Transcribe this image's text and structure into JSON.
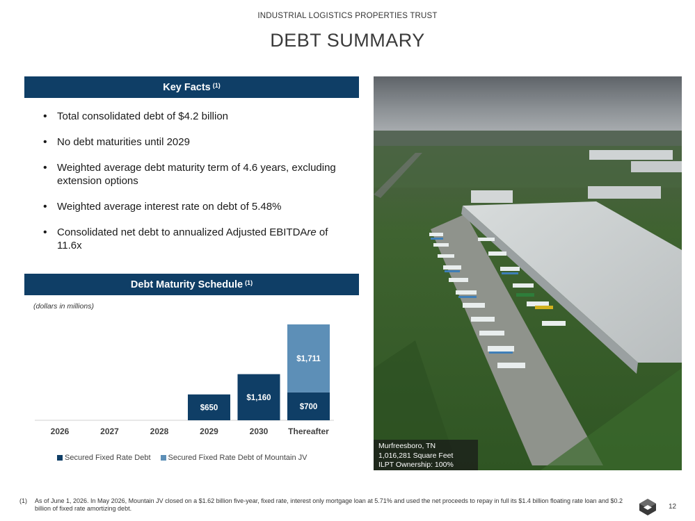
{
  "header": {
    "company": "INDUSTRIAL LOGISTICS PROPERTIES TRUST",
    "title": "DEBT SUMMARY"
  },
  "key_facts": {
    "heading": "Key Facts",
    "note_marker": "(1)",
    "items": [
      "Total consolidated debt of $4.2 billion",
      "No debt maturities until 2029",
      "Weighted average debt maturity term of 4.6 years, excluding extension options",
      "Weighted average interest rate on debt of 5.48%",
      "Consolidated net debt to annualized Adjusted EBITDA"
    ],
    "item5_italic": "re",
    "item5_tail": " of 11.6x"
  },
  "schedule": {
    "heading": "Debt Maturity Schedule",
    "note_marker": "(1)",
    "units_note": "(dollars in millions)"
  },
  "chart_data": {
    "type": "bar",
    "stacked": true,
    "categories": [
      "2026",
      "2027",
      "2028",
      "2029",
      "2030",
      "Thereafter"
    ],
    "series": [
      {
        "name": "Secured Fixed Rate Debt",
        "color": "#0f3e66",
        "values": [
          0,
          0,
          0,
          650,
          1160,
          700
        ],
        "labels": [
          "",
          "",
          "",
          "$650",
          "$1,160",
          "$700"
        ]
      },
      {
        "name": "Secured Fixed Rate Debt of Mountain JV",
        "color": "#5d8fb7",
        "values": [
          0,
          0,
          0,
          0,
          0,
          1711
        ],
        "labels": [
          "",
          "",
          "",
          "",
          "",
          "$1,711"
        ]
      }
    ],
    "ylim": [
      0,
      2411
    ],
    "legend_position": "bottom",
    "grid": false
  },
  "photo": {
    "caption_lines": [
      "Murfreesboro, TN",
      "1,016,281 Square Feet",
      "ILPT Ownership: 100%"
    ]
  },
  "footnote": {
    "number": "(1)",
    "text": "As of June 1, 2026. In May 2026, Mountain JV closed on a $1.62 billion five-year, fixed rate, interest only mortgage loan at 5.71% and used the net proceeds to repay in full its $1.4 billion floating rate loan and $0.2 billion of fixed rate amortizing debt."
  },
  "page_number": "12",
  "colors": {
    "navy": "#0f3e66",
    "light_blue": "#5d8fb7"
  }
}
